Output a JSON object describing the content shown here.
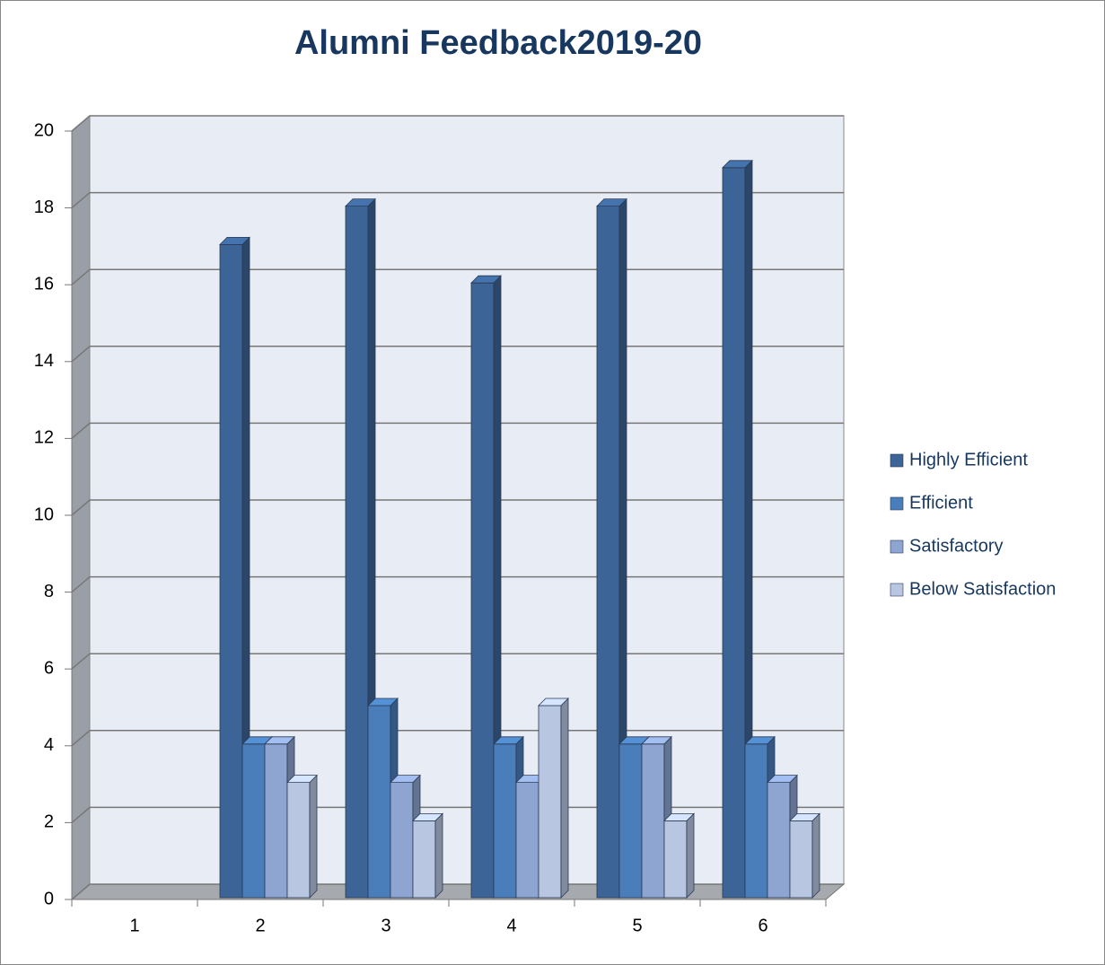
{
  "chart_data": {
    "type": "bar3d",
    "title": "Alumni Feedback2019-20",
    "categories": [
      "1",
      "2",
      "3",
      "4",
      "5",
      "6"
    ],
    "series": [
      {
        "name": "Highly Efficient",
        "color": "#3c6496",
        "values": [
          null,
          17,
          18,
          16,
          18,
          19
        ]
      },
      {
        "name": "Efficient",
        "color": "#4a7ebb",
        "values": [
          null,
          4,
          5,
          4,
          4,
          4
        ]
      },
      {
        "name": "Satisfactory",
        "color": "#8ea5d1",
        "values": [
          null,
          4,
          3,
          3,
          4,
          3
        ]
      },
      {
        "name": "Below Satisfaction",
        "color": "#b9c6e2",
        "values": [
          null,
          3,
          2,
          5,
          2,
          2
        ]
      }
    ],
    "ylim": [
      0,
      20
    ],
    "yticks": [
      0,
      2,
      4,
      6,
      8,
      10,
      12,
      14,
      16,
      18,
      20
    ],
    "grid": true,
    "legend": "right"
  }
}
